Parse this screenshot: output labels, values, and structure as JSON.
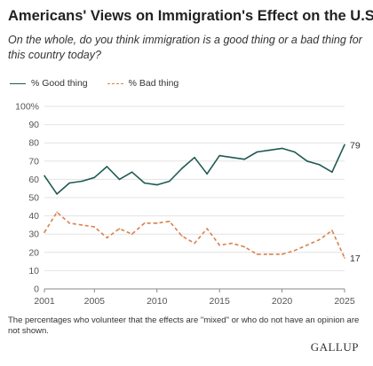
{
  "title": "Americans' Views on Immigration's Effect on the U.S.",
  "subtitle": "On the whole, do you think immigration is a good thing or a bad thing for this country today?",
  "note": "The percentages who volunteer that the effects are \"mixed\" or who do not have an opinion are not shown.",
  "brand": "GALLUP",
  "chart_data": {
    "type": "line",
    "title": "Americans' Views on Immigration's Effect on the U.S.",
    "xlabel": "",
    "ylabel": "",
    "xlim": [
      2001,
      2025
    ],
    "ylim": [
      0,
      100
    ],
    "x_ticks": [
      2001,
      2005,
      2010,
      2015,
      2020,
      2025
    ],
    "y_ticks": [
      "0",
      "10",
      "20",
      "30",
      "40",
      "50",
      "60",
      "70",
      "80",
      "90",
      "100%"
    ],
    "grid": true,
    "legend_position": "top-left",
    "x": [
      2001,
      2002,
      2003,
      2004,
      2005,
      2006,
      2007,
      2008,
      2009,
      2010,
      2011,
      2012,
      2013,
      2014,
      2015,
      2016,
      2017,
      2018,
      2019,
      2020,
      2021,
      2022,
      2023,
      2024,
      2025
    ],
    "series": [
      {
        "name": "% Good thing",
        "color": "#1e5a52",
        "style": "solid",
        "values": [
          62,
          52,
          58,
          59,
          61,
          67,
          60,
          64,
          58,
          57,
          59,
          66,
          72,
          63,
          73,
          72,
          71,
          75,
          76,
          77,
          75,
          70,
          68,
          64,
          79
        ],
        "end_label": "79"
      },
      {
        "name": "% Bad thing",
        "color": "#d9814d",
        "style": "dashed",
        "values": [
          31,
          42,
          36,
          35,
          34,
          28,
          33,
          30,
          36,
          36,
          37,
          29,
          25,
          33,
          24,
          25,
          23,
          19,
          19,
          19,
          21,
          24,
          27,
          32,
          17
        ],
        "end_label": "17"
      }
    ]
  }
}
